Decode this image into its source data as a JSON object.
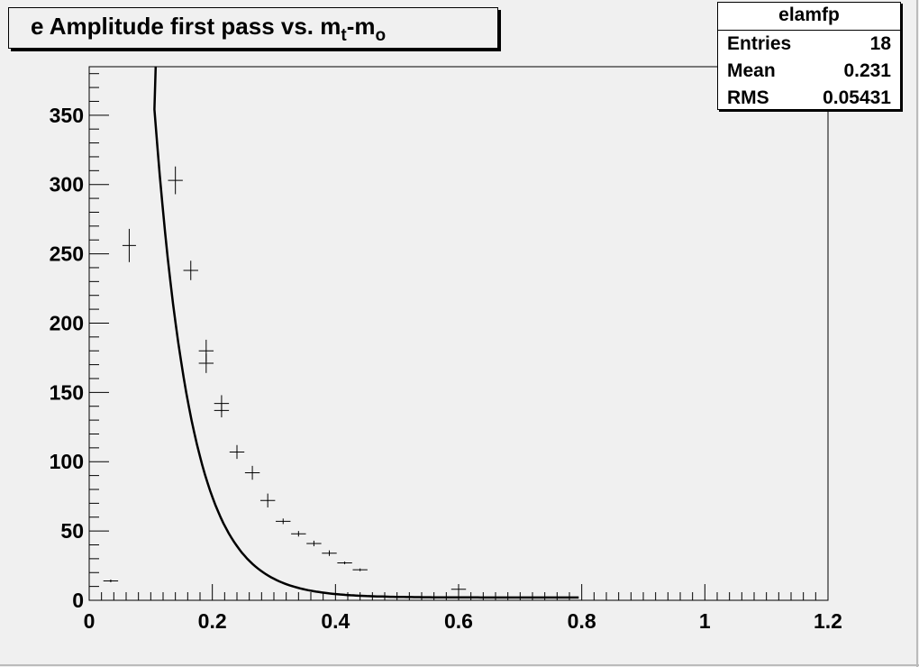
{
  "chart_data": {
    "type": "scatter",
    "title": "e Amplitude first pass vs. m",
    "title_sub1": "t",
    "title_mid": "-m",
    "title_sub2": "o",
    "xlabel": "",
    "ylabel": "",
    "xlim": [
      0,
      1.2
    ],
    "ylim": [
      0,
      385
    ],
    "x_ticks": [
      0,
      0.2,
      0.4,
      0.6,
      0.8,
      1,
      1.2
    ],
    "x_tick_labels": [
      "0",
      "0.2",
      "0.4",
      "0.6",
      "0.8",
      "1",
      "1.2"
    ],
    "y_ticks": [
      0,
      50,
      100,
      150,
      200,
      250,
      300,
      350
    ],
    "y_tick_labels": [
      "0",
      "50",
      "100",
      "150",
      "200",
      "250",
      "300",
      "350"
    ],
    "grid": false,
    "points": [
      {
        "x": 0.035,
        "y": 14,
        "xerr": 0.012,
        "yerr": 1
      },
      {
        "x": 0.065,
        "y": 256,
        "xerr": 0.011,
        "yerr": 12
      },
      {
        "x": 0.14,
        "y": 303,
        "xerr": 0.012,
        "yerr": 10
      },
      {
        "x": 0.165,
        "y": 238,
        "xerr": 0.012,
        "yerr": 7
      },
      {
        "x": 0.19,
        "y": 180,
        "xerr": 0.012,
        "yerr": 8
      },
      {
        "x": 0.19,
        "y": 171,
        "xerr": 0.012,
        "yerr": 7
      },
      {
        "x": 0.215,
        "y": 142,
        "xerr": 0.012,
        "yerr": 6
      },
      {
        "x": 0.215,
        "y": 137,
        "xerr": 0.012,
        "yerr": 5
      },
      {
        "x": 0.24,
        "y": 107,
        "xerr": 0.012,
        "yerr": 5
      },
      {
        "x": 0.265,
        "y": 92,
        "xerr": 0.012,
        "yerr": 5
      },
      {
        "x": 0.29,
        "y": 72,
        "xerr": 0.012,
        "yerr": 5
      },
      {
        "x": 0.315,
        "y": 57,
        "xerr": 0.012,
        "yerr": 2
      },
      {
        "x": 0.34,
        "y": 48,
        "xerr": 0.012,
        "yerr": 2
      },
      {
        "x": 0.365,
        "y": 41,
        "xerr": 0.012,
        "yerr": 2
      },
      {
        "x": 0.39,
        "y": 34,
        "xerr": 0.012,
        "yerr": 2
      },
      {
        "x": 0.415,
        "y": 27,
        "xerr": 0.012,
        "yerr": 1
      },
      {
        "x": 0.44,
        "y": 22,
        "xerr": 0.012,
        "yerr": 1
      },
      {
        "x": 0.6,
        "y": 8,
        "xerr": 0.012,
        "yerr": 1
      }
    ],
    "fit_curve": {
      "type": "exponential",
      "x_range": [
        0.106,
        0.795
      ],
      "A": 2090,
      "b": 16.8,
      "c": 2.0
    },
    "legend": {
      "name": "elamfp",
      "entries_label": "Entries",
      "entries_value": "18",
      "mean_label": "Mean",
      "mean_value": "0.231",
      "rms_label": "RMS",
      "rms_value": "0.05431"
    },
    "colors": {
      "background": "#f0f0f0",
      "frame": "#000000",
      "stats_bg": "#ffffff"
    }
  }
}
